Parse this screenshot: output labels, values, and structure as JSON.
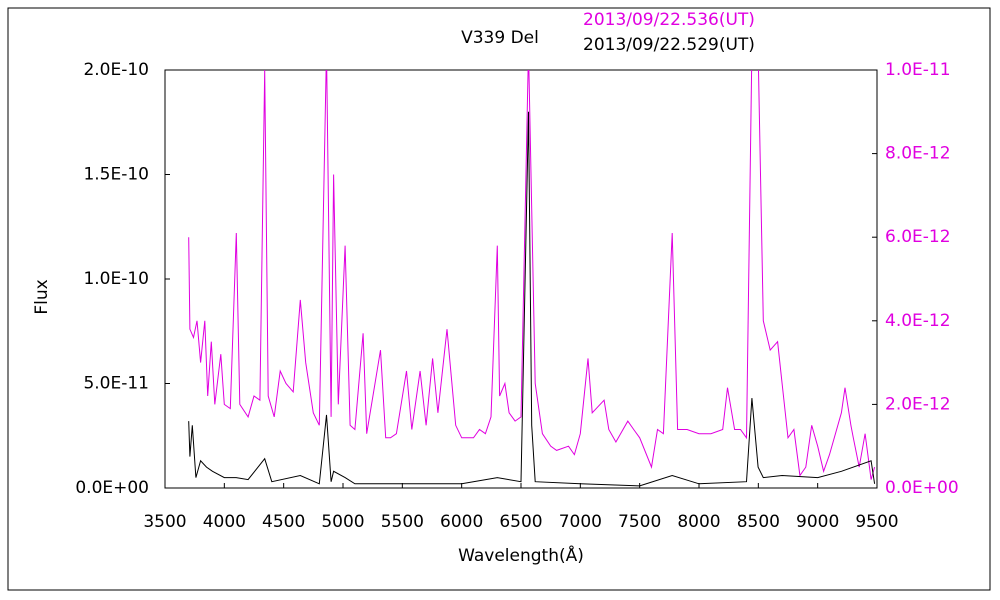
{
  "chart_data": {
    "type": "line",
    "title": "V339 Del",
    "x_label": "Wavelength(Å)",
    "y_label": "Flux",
    "xlim": [
      3500,
      9500
    ],
    "xticks": [
      3500,
      4000,
      4500,
      5000,
      5500,
      6000,
      6500,
      7000,
      7500,
      8000,
      8500,
      9000,
      9500
    ],
    "ylim": [
      0,
      2e-10
    ],
    "yticks": [
      {
        "value": 0,
        "label": "0.0E+00"
      },
      {
        "value": 5e-11,
        "label": "5.0E-11"
      },
      {
        "value": 1e-10,
        "label": "1.0E-10"
      },
      {
        "value": 1.5e-10,
        "label": "1.5E-10"
      },
      {
        "value": 2e-10,
        "label": "2.0E-10"
      }
    ],
    "y2lim": [
      0,
      1e-11
    ],
    "y2ticks": [
      {
        "value": 0,
        "label": "0.0E+00"
      },
      {
        "value": 2e-12,
        "label": "2.0E-12"
      },
      {
        "value": 4e-12,
        "label": "4.0E-12"
      },
      {
        "value": 6e-12,
        "label": "6.0E-12"
      },
      {
        "value": 8e-12,
        "label": "8.0E-12"
      },
      {
        "value": 1e-11,
        "label": "1.0E-11"
      }
    ],
    "y2_color": "#e000e0",
    "series": [
      {
        "name": "2013/09/22.536(UT)",
        "color": "#e000e0",
        "axis": "y2",
        "x": [
          3700,
          3710,
          3740,
          3770,
          3800,
          3835,
          3860,
          3890,
          3920,
          3970,
          4000,
          4050,
          4101,
          4130,
          4200,
          4250,
          4300,
          4340,
          4370,
          4420,
          4471,
          4520,
          4580,
          4640,
          4686,
          4750,
          4800,
          4861,
          4900,
          4921,
          4960,
          5018,
          5060,
          5100,
          5169,
          5200,
          5270,
          5316,
          5360,
          5400,
          5450,
          5535,
          5580,
          5650,
          5700,
          5755,
          5800,
          5876,
          5950,
          6000,
          6100,
          6150,
          6200,
          6247,
          6300,
          6320,
          6364,
          6400,
          6450,
          6500,
          6563,
          6620,
          6680,
          6750,
          6800,
          6900,
          6950,
          7000,
          7065,
          7100,
          7200,
          7240,
          7300,
          7400,
          7450,
          7500,
          7600,
          7650,
          7700,
          7774,
          7820,
          7900,
          8000,
          8100,
          8200,
          8240,
          8300,
          8350,
          8400,
          8446,
          8498,
          8542,
          8600,
          8662,
          8700,
          8750,
          8800,
          8850,
          8900,
          8950,
          9000,
          9050,
          9100,
          9200,
          9230,
          9280,
          9300,
          9350,
          9400,
          9450,
          9480
        ],
        "values": [
          6e-12,
          3.8e-12,
          3.6e-12,
          4e-12,
          3e-12,
          4e-12,
          2.2e-12,
          3.5e-12,
          2e-12,
          3.2e-12,
          2e-12,
          1.9e-12,
          6.1e-12,
          2e-12,
          1.7e-12,
          2.2e-12,
          2.1e-12,
          1e-11,
          2.2e-12,
          1.7e-12,
          2.8e-12,
          2.5e-12,
          2.3e-12,
          4.5e-12,
          3e-12,
          1.8e-12,
          1.5e-12,
          1.05e-11,
          1.7e-12,
          7.5e-12,
          2e-12,
          5.8e-12,
          1.5e-12,
          1.4e-12,
          3.7e-12,
          1.3e-12,
          2.5e-12,
          3.3e-12,
          1.2e-12,
          1.2e-12,
          1.3e-12,
          2.8e-12,
          1.4e-12,
          2.8e-12,
          1.5e-12,
          3.1e-12,
          1.8e-12,
          3.8e-12,
          1.5e-12,
          1.2e-12,
          1.2e-12,
          1.4e-12,
          1.3e-12,
          1.7e-12,
          5.8e-12,
          2.2e-12,
          2.5e-12,
          1.8e-12,
          1.6e-12,
          1.7e-12,
          1.05e-11,
          2.5e-12,
          1.3e-12,
          1e-12,
          9e-13,
          1e-12,
          8e-13,
          1.3e-12,
          3.1e-12,
          1.8e-12,
          2.1e-12,
          1.4e-12,
          1.1e-12,
          1.6e-12,
          1.4e-12,
          1.2e-12,
          5e-13,
          1.4e-12,
          1.3e-12,
          6.1e-12,
          1.4e-12,
          1.4e-12,
          1.3e-12,
          1.3e-12,
          1.4e-12,
          2.4e-12,
          1.4e-12,
          1.4e-12,
          1.2e-12,
          1.05e-11,
          1.05e-11,
          4e-12,
          3.3e-12,
          3.5e-12,
          2.5e-12,
          1.2e-12,
          1.4e-12,
          3e-13,
          5e-13,
          1.5e-12,
          1e-12,
          4e-13,
          8e-13,
          1.8e-12,
          2.4e-12,
          1.5e-12,
          1.2e-12,
          5e-13,
          1.3e-12,
          2e-13,
          5e-13
        ]
      },
      {
        "name": "2013/09/22.529(UT)",
        "color": "#000000",
        "x": [
          3700,
          3710,
          3730,
          3760,
          3800,
          3850,
          3900,
          4000,
          4100,
          4200,
          4340,
          4400,
          4640,
          4800,
          4861,
          4900,
          4921,
          5018,
          5100,
          5500,
          6000,
          6300,
          6500,
          6563,
          6590,
          6620,
          7000,
          7500,
          7774,
          8000,
          8400,
          8446,
          8498,
          8542,
          8700,
          9000,
          9200,
          9450,
          9480
        ],
        "values": [
          3.2e-11,
          1.5e-11,
          3e-11,
          5e-12,
          1.3e-11,
          1e-11,
          8e-12,
          5e-12,
          5e-12,
          4e-12,
          1.4e-11,
          3e-12,
          6e-12,
          2e-12,
          3.5e-11,
          3e-12,
          8e-12,
          5e-12,
          2e-12,
          2e-12,
          2e-12,
          5e-12,
          3e-12,
          1.8e-10,
          3e-11,
          3e-12,
          2e-12,
          1e-12,
          6e-12,
          2e-12,
          3e-12,
          4.3e-11,
          1e-11,
          5e-12,
          6e-12,
          5e-12,
          8e-12,
          1.3e-11,
          2e-12
        ]
      }
    ]
  }
}
